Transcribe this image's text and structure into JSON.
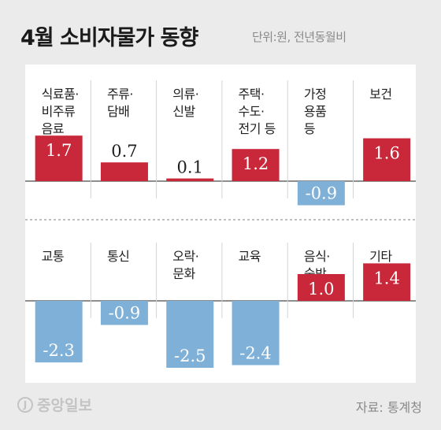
{
  "title": "4월 소비자물가 동향",
  "unit_note": "단위:원, 전년동월비",
  "logo_text": "중앙일보",
  "source": "자료: 통계청",
  "colors": {
    "positive": "#c82839",
    "negative": "#7fb0d8",
    "panel": "#ffffff",
    "background": "#ebebeb"
  },
  "chart_data": {
    "type": "bar",
    "title": "4월 소비자물가 동향",
    "unit": "단위:원, 전년동월비",
    "categories": [
      "식료품·비주류음료",
      "주류·담배",
      "의류·신발",
      "주택·수도·전기 등",
      "가정용품 등",
      "보건",
      "교통",
      "통신",
      "오락·문화",
      "교육",
      "음식·숙박",
      "기타"
    ],
    "category_lines": [
      [
        "식료품·",
        "비주류",
        "음료"
      ],
      [
        "주류·",
        "담배"
      ],
      [
        "의류·",
        "신발"
      ],
      [
        "주택·",
        "수도·",
        "전기 등"
      ],
      [
        "가정",
        "용품",
        "등"
      ],
      [
        "보건"
      ],
      [
        "교통"
      ],
      [
        "통신"
      ],
      [
        "오락·",
        "문화"
      ],
      [
        "교육"
      ],
      [
        "음식·",
        "숙박"
      ],
      [
        "기타"
      ]
    ],
    "values": [
      1.7,
      0.7,
      0.1,
      1.2,
      -0.9,
      1.6,
      -2.3,
      -0.9,
      -2.5,
      -2.4,
      1.0,
      1.4
    ],
    "value_labels": [
      "1.7",
      "0.7",
      "0.1",
      "1.2",
      "-0.9",
      "1.6",
      "-2.3",
      "-0.9",
      "-2.5",
      "-2.4",
      "1.0",
      "1.4"
    ],
    "layout": "two rows of six",
    "grid": false
  }
}
